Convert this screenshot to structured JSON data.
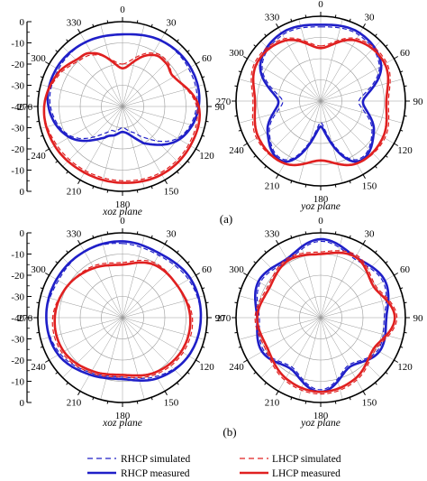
{
  "figure": {
    "panel_labels": [
      "(a)",
      "(b)"
    ],
    "plane_labels": [
      "xoz plane",
      "yoz plane",
      "xoz plane",
      "yoz plane"
    ]
  },
  "legend": {
    "items": [
      {
        "label": "RHCP simulated",
        "color": "#1f1fc8",
        "style": "dashed"
      },
      {
        "label": "LHCP simulated",
        "color": "#e02020",
        "style": "dashed"
      },
      {
        "label": "RHCP measured",
        "color": "#1f1fc8",
        "style": "solid"
      },
      {
        "label": "LHCP measured",
        "color": "#e02020",
        "style": "solid"
      }
    ]
  },
  "colors": {
    "rhcp": "#1f1fc8",
    "lhcp": "#e02020",
    "grid": "#9a9a9a"
  },
  "chart_data": [
    {
      "type": "polar",
      "panel": "(a)",
      "title": "xoz plane",
      "r_ticks": [
        "0",
        "-10",
        "-20",
        "-30",
        "-40",
        "-30",
        "-20",
        "-10",
        "0"
      ],
      "r_range": [
        -40,
        0
      ],
      "angle_ticks": [
        "0",
        "30",
        "60",
        "90",
        "120",
        "150",
        "180",
        "210",
        "240",
        "270",
        "300",
        "330"
      ],
      "series": [
        {
          "name": "RHCP simulated",
          "angles": [
            0,
            30,
            60,
            90,
            120,
            150,
            165,
            180,
            195,
            210,
            240,
            270,
            300,
            330
          ],
          "values": [
            -6,
            -4,
            -4,
            -5,
            -10,
            -24,
            -28,
            -30,
            -28,
            -26,
            -12,
            -6,
            -5,
            -5
          ]
        },
        {
          "name": "RHCP measured",
          "angles": [
            0,
            30,
            60,
            90,
            120,
            150,
            165,
            180,
            195,
            210,
            240,
            270,
            300,
            330
          ],
          "values": [
            -6,
            -4,
            -3,
            -4,
            -9,
            -20,
            -26,
            -28,
            -26,
            -23,
            -11,
            -5,
            -4,
            -5
          ]
        },
        {
          "name": "LHCP simulated",
          "angles": [
            0,
            30,
            45,
            60,
            90,
            120,
            150,
            180,
            210,
            240,
            270,
            300,
            315,
            330
          ],
          "values": [
            -20,
            -11,
            -10,
            -12,
            -5,
            -4,
            -4,
            -5,
            -5,
            -4,
            -3,
            -7,
            -10,
            -12
          ]
        },
        {
          "name": "LHCP measured",
          "angles": [
            0,
            30,
            45,
            60,
            90,
            120,
            150,
            180,
            210,
            240,
            270,
            300,
            315,
            330
          ],
          "values": [
            -22,
            -12,
            -11,
            -12,
            -4,
            -3,
            -3,
            -4,
            -4,
            -3,
            -3,
            -6,
            -9,
            -11
          ]
        }
      ]
    },
    {
      "type": "polar",
      "panel": "(a)",
      "title": "yoz plane",
      "r_range": [
        -40,
        0
      ],
      "angle_ticks": [
        "0",
        "30",
        "60",
        "90",
        "120",
        "150",
        "180",
        "210",
        "240",
        "270",
        "300",
        "330"
      ],
      "series": [
        {
          "name": "RHCP simulated",
          "angles": [
            0,
            30,
            60,
            90,
            120,
            150,
            180,
            210,
            240,
            270,
            300,
            330
          ],
          "values": [
            -5,
            -4,
            -8,
            -22,
            -12,
            -8,
            -30,
            -8,
            -12,
            -22,
            -8,
            -4
          ]
        },
        {
          "name": "RHCP measured",
          "angles": [
            0,
            30,
            60,
            90,
            120,
            150,
            180,
            210,
            240,
            270,
            300,
            330
          ],
          "values": [
            -4,
            -3,
            -7,
            -20,
            -11,
            -7,
            -28,
            -7,
            -11,
            -20,
            -7,
            -3
          ]
        },
        {
          "name": "LHCP simulated",
          "angles": [
            0,
            30,
            60,
            90,
            120,
            150,
            180,
            210,
            240,
            270,
            300,
            330
          ],
          "values": [
            -14,
            -6,
            -4,
            -8,
            -5,
            -6,
            -12,
            -6,
            -5,
            -8,
            -4,
            -6
          ]
        },
        {
          "name": "LHCP measured",
          "angles": [
            0,
            30,
            60,
            90,
            120,
            150,
            180,
            210,
            240,
            270,
            300,
            330
          ],
          "values": [
            -15,
            -7,
            -5,
            -9,
            -6,
            -6,
            -12,
            -6,
            -6,
            -9,
            -5,
            -7
          ]
        }
      ]
    },
    {
      "type": "polar",
      "panel": "(b)",
      "title": "xoz plane",
      "r_ticks": [
        "0",
        "-10",
        "-20",
        "-30",
        "-40",
        "-30",
        "-20",
        "-10",
        "0"
      ],
      "r_range": [
        -40,
        0
      ],
      "angle_ticks": [
        "0",
        "30",
        "60",
        "90",
        "120",
        "150",
        "180",
        "210",
        "240",
        "270",
        "300",
        "330"
      ],
      "series": [
        {
          "name": "RHCP simulated",
          "angles": [
            0,
            30,
            60,
            90,
            120,
            150,
            180,
            210,
            240,
            270,
            300,
            330
          ],
          "values": [
            -5,
            -6,
            -4,
            -3,
            -4,
            -8,
            -12,
            -10,
            -6,
            -4,
            -5,
            -4
          ]
        },
        {
          "name": "RHCP measured",
          "angles": [
            0,
            30,
            60,
            90,
            120,
            150,
            180,
            210,
            240,
            270,
            300,
            330
          ],
          "values": [
            -4,
            -5,
            -3,
            -3,
            -4,
            -7,
            -11,
            -9,
            -5,
            -4,
            -4,
            -4
          ]
        },
        {
          "name": "LHCP simulated",
          "angles": [
            0,
            30,
            60,
            90,
            120,
            150,
            180,
            210,
            240,
            270,
            300,
            330
          ],
          "values": [
            -14,
            -10,
            -10,
            -7,
            -7,
            -9,
            -12,
            -10,
            -7,
            -7,
            -10,
            -12
          ]
        },
        {
          "name": "LHCP measured",
          "angles": [
            0,
            30,
            60,
            90,
            120,
            150,
            180,
            210,
            240,
            270,
            300,
            330
          ],
          "values": [
            -15,
            -11,
            -10,
            -8,
            -8,
            -10,
            -13,
            -11,
            -8,
            -8,
            -10,
            -13
          ]
        }
      ]
    },
    {
      "type": "polar",
      "panel": "(b)",
      "title": "yoz plane",
      "r_range": [
        -40,
        0
      ],
      "angle_ticks": [
        "0",
        "30",
        "60",
        "90",
        "120",
        "150",
        "180",
        "210",
        "240",
        "270",
        "300",
        "330"
      ],
      "series": [
        {
          "name": "RHCP simulated",
          "angles": [
            0,
            30,
            60,
            90,
            120,
            150,
            180,
            210,
            240,
            270,
            300,
            330
          ],
          "values": [
            -4,
            -8,
            -6,
            -10,
            -9,
            -14,
            -6,
            -13,
            -9,
            -11,
            -7,
            -9
          ]
        },
        {
          "name": "RHCP measured",
          "angles": [
            0,
            30,
            60,
            90,
            120,
            150,
            180,
            210,
            240,
            270,
            300,
            330
          ],
          "values": [
            -3,
            -7,
            -5,
            -9,
            -8,
            -13,
            -5,
            -12,
            -8,
            -10,
            -6,
            -8
          ]
        },
        {
          "name": "LHCP simulated",
          "angles": [
            0,
            30,
            60,
            90,
            120,
            150,
            180,
            210,
            240,
            270,
            300,
            330
          ],
          "values": [
            -9,
            -6,
            -10,
            -4,
            -10,
            -6,
            -4,
            -6,
            -10,
            -9,
            -11,
            -8
          ]
        },
        {
          "name": "LHCP measured",
          "angles": [
            0,
            30,
            60,
            90,
            120,
            150,
            180,
            210,
            240,
            270,
            300,
            330
          ],
          "values": [
            -10,
            -7,
            -11,
            -5,
            -11,
            -7,
            -5,
            -7,
            -11,
            -10,
            -12,
            -9
          ]
        }
      ]
    }
  ]
}
